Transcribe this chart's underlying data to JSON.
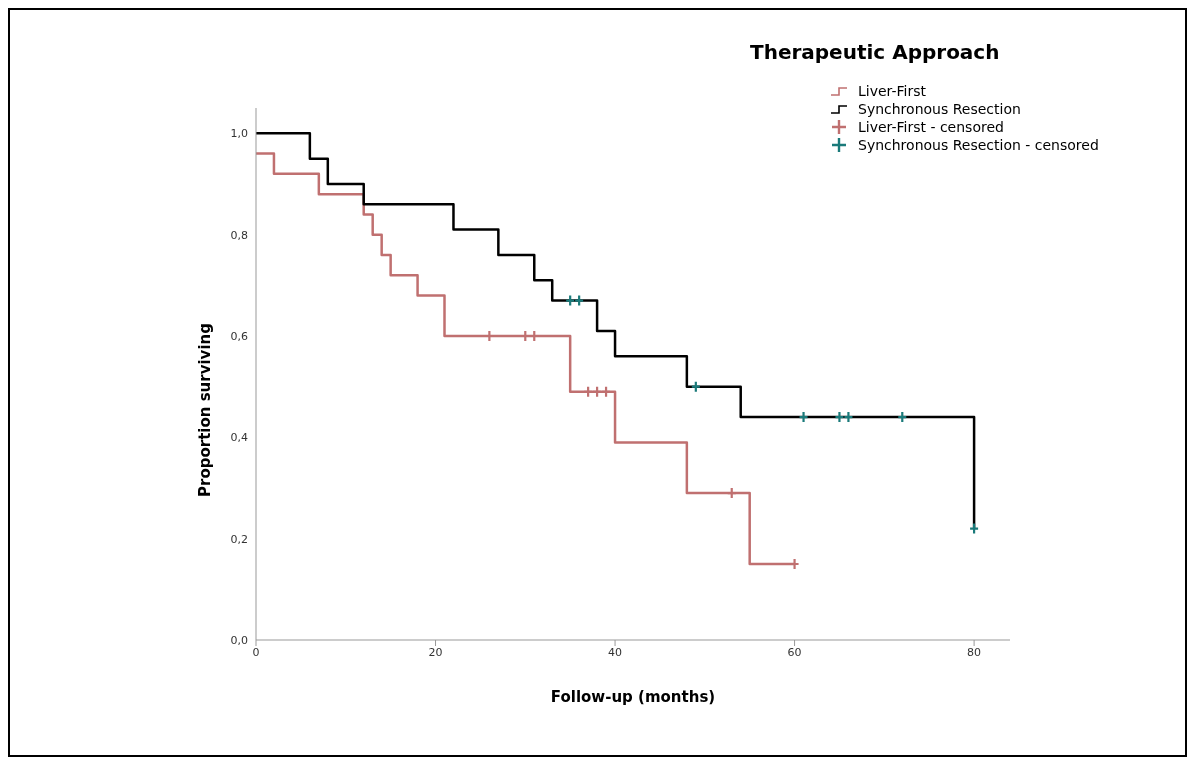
{
  "chart_data": {
    "type": "line",
    "legend_title": "Therapeutic Approach",
    "xlabel": "Follow-up (months)",
    "ylabel": "Proportion surviving",
    "xlim": [
      0,
      84
    ],
    "xticks": [
      0,
      20,
      40,
      60,
      80
    ],
    "ylim": [
      0,
      1.05
    ],
    "yticks": [
      {
        "value": 0,
        "label": "0,0"
      },
      {
        "value": 0.2,
        "label": "0,2"
      },
      {
        "value": 0.4,
        "label": "0,4"
      },
      {
        "value": 0.6,
        "label": "0,6"
      },
      {
        "value": 0.8,
        "label": "0,8"
      },
      {
        "value": 1,
        "label": "1,0"
      }
    ],
    "legend": "top right",
    "series": [
      {
        "type": "step",
        "name": "Liver-First",
        "color": "#c07070",
        "x": [
          0,
          2,
          7,
          12,
          13,
          14,
          15,
          18,
          21,
          35,
          40,
          48,
          55,
          60
        ],
        "values": [
          0.96,
          0.92,
          0.88,
          0.84,
          0.8,
          0.76,
          0.72,
          0.68,
          0.6,
          0.49,
          0.39,
          0.29,
          0.15,
          0.15
        ]
      },
      {
        "type": "step",
        "name": "Synchronous Resection",
        "color": "#000000",
        "x": [
          0,
          6,
          8,
          12,
          22,
          27,
          31,
          33,
          38,
          40,
          48,
          54,
          80
        ],
        "values": [
          1,
          0.95,
          0.9,
          0.86,
          0.81,
          0.76,
          0.71,
          0.67,
          0.61,
          0.56,
          0.5,
          0.44,
          0.22
        ]
      },
      {
        "type": "scatter",
        "marker": "cross",
        "name": "Liver-First - censored",
        "color": "#c07070",
        "x": [
          26,
          30,
          31,
          37,
          38,
          39,
          53,
          60
        ],
        "values": [
          0.6,
          0.6,
          0.6,
          0.49,
          0.49,
          0.49,
          0.29,
          0.15
        ]
      },
      {
        "type": "scatter",
        "marker": "cross",
        "name": "Synchronous Resection - censored",
        "color": "#1a7a7a",
        "x": [
          35,
          36,
          49,
          61,
          65,
          66,
          72,
          80
        ],
        "values": [
          0.67,
          0.67,
          0.5,
          0.44,
          0.44,
          0.44,
          0.44,
          0.22
        ]
      }
    ]
  }
}
